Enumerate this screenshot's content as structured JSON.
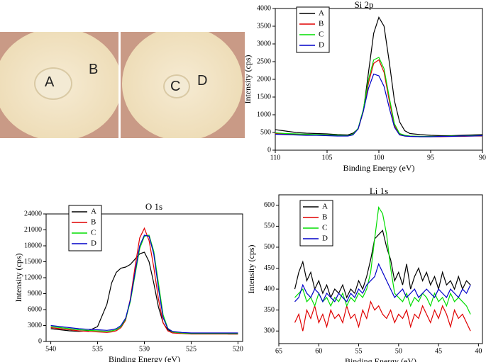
{
  "photo": {
    "labels": [
      "A",
      "B",
      "C",
      "D"
    ]
  },
  "chart_data": [
    {
      "type": "line",
      "title": "Si 2p",
      "x_label": "Binding Energy (eV)",
      "y_label": "Intensity (cps)",
      "x": [
        110,
        109,
        108,
        107,
        106,
        105,
        104,
        103,
        102.5,
        102,
        101.5,
        101,
        100.5,
        100,
        99.5,
        99,
        98.5,
        98,
        97.5,
        97,
        96,
        95,
        94,
        93,
        92,
        91,
        90
      ],
      "series": [
        {
          "name": "A",
          "color": "#000000",
          "values": [
            580,
            540,
            500,
            480,
            470,
            460,
            440,
            430,
            480,
            600,
            1100,
            2200,
            3300,
            3750,
            3500,
            2500,
            1400,
            800,
            550,
            470,
            440,
            420,
            410,
            410,
            420,
            430,
            440
          ]
        },
        {
          "name": "B",
          "color": "#e00000",
          "values": [
            470,
            460,
            450,
            440,
            430,
            420,
            410,
            410,
            450,
            600,
            1100,
            1900,
            2450,
            2550,
            2200,
            1400,
            700,
            450,
            400,
            390,
            380,
            380,
            380,
            390,
            390,
            400,
            400
          ]
        },
        {
          "name": "C",
          "color": "#00dd00",
          "values": [
            490,
            470,
            460,
            450,
            440,
            430,
            420,
            410,
            450,
            620,
            1150,
            2000,
            2550,
            2620,
            2300,
            1500,
            750,
            470,
            420,
            400,
            390,
            390,
            390,
            400,
            400,
            410,
            410
          ]
        },
        {
          "name": "D",
          "color": "#0000c8",
          "values": [
            450,
            440,
            430,
            420,
            420,
            410,
            400,
            400,
            430,
            600,
            1100,
            1750,
            2150,
            2100,
            1800,
            1200,
            650,
            430,
            400,
            390,
            380,
            380,
            390,
            390,
            400,
            400,
            410
          ]
        }
      ],
      "xlim": [
        110,
        90
      ],
      "xticks": [
        110,
        105,
        100,
        95,
        90
      ],
      "ylim": [
        0,
        4000
      ],
      "yticks": [
        0,
        500,
        1000,
        1500,
        2000,
        2500,
        3000,
        3500,
        4000
      ],
      "legend": "upper left"
    },
    {
      "type": "line",
      "title": "O 1s",
      "x_label": "Binding Energy (eV)",
      "y_label": "Intensity (cps)",
      "x": [
        540,
        539,
        538,
        537,
        536,
        535,
        534,
        533.5,
        533,
        532.5,
        532,
        531.5,
        531,
        530.5,
        530,
        529.5,
        529,
        528.5,
        528,
        527.5,
        527,
        526,
        525,
        524,
        523,
        522,
        521,
        520
      ],
      "series": [
        {
          "name": "A",
          "color": "#000000",
          "values": [
            2400,
            2200,
            2000,
            1900,
            2000,
            2800,
            7000,
            11000,
            13000,
            13800,
            14000,
            14500,
            15500,
            16500,
            16800,
            15000,
            11000,
            6500,
            3500,
            2200,
            1800,
            1600,
            1500,
            1500,
            1500,
            1500,
            1400,
            1400
          ]
        },
        {
          "name": "B",
          "color": "#e00000",
          "values": [
            2600,
            2400,
            2200,
            2000,
            1900,
            1800,
            1700,
            1800,
            2000,
            2600,
            4000,
            8000,
            14000,
            19500,
            21300,
            19000,
            14000,
            8000,
            3500,
            2000,
            1600,
            1500,
            1400,
            1400,
            1400,
            1400,
            1400,
            1400
          ]
        },
        {
          "name": "C",
          "color": "#00dd00",
          "values": [
            2800,
            2600,
            2400,
            2200,
            2100,
            2000,
            1900,
            2000,
            2200,
            2800,
            4200,
            7500,
            12500,
            17500,
            19800,
            20000,
            17000,
            11000,
            5000,
            2500,
            1800,
            1600,
            1500,
            1500,
            1500,
            1500,
            1500,
            1500
          ]
        },
        {
          "name": "D",
          "color": "#0000c8",
          "values": [
            3000,
            2800,
            2600,
            2400,
            2300,
            2200,
            2100,
            2200,
            2400,
            3000,
            4400,
            7800,
            13000,
            18000,
            20000,
            19800,
            16500,
            10000,
            4500,
            2400,
            1900,
            1700,
            1600,
            1600,
            1600,
            1600,
            1600,
            1600
          ]
        }
      ],
      "xlim": [
        540.5,
        519.5
      ],
      "xticks": [
        540,
        535,
        530,
        525,
        520
      ],
      "ylim": [
        0,
        24000
      ],
      "yticks": [
        0,
        3000,
        6000,
        9000,
        12000,
        15000,
        18000,
        21000,
        24000
      ],
      "legend": "upper left"
    },
    {
      "type": "line",
      "title": "Li 1s",
      "x_label": "Binding Energy (eV)",
      "y_label": "Intensity (cps)",
      "x": [
        63,
        62.5,
        62,
        61.5,
        61,
        60.5,
        60,
        59.5,
        59,
        58.5,
        58,
        57.5,
        57,
        56.5,
        56,
        55.5,
        55,
        54.5,
        54,
        53.5,
        53,
        52.5,
        52,
        51.5,
        51,
        50.5,
        50,
        49.5,
        49,
        48.5,
        48,
        47.5,
        47,
        46.5,
        46,
        45.5,
        45,
        44.5,
        44,
        43.5,
        43,
        42.5,
        42,
        41.5,
        41
      ],
      "series": [
        {
          "name": "A",
          "color": "#000000",
          "values": [
            400,
            440,
            465,
            420,
            440,
            400,
            420,
            390,
            410,
            380,
            400,
            390,
            410,
            380,
            400,
            390,
            420,
            400,
            430,
            470,
            520,
            530,
            540,
            500,
            470,
            420,
            440,
            410,
            460,
            400,
            430,
            450,
            420,
            440,
            410,
            430,
            400,
            440,
            410,
            420,
            400,
            430,
            400,
            420,
            410
          ]
        },
        {
          "name": "B",
          "color": "#e00000",
          "values": [
            320,
            340,
            300,
            350,
            330,
            360,
            320,
            340,
            310,
            350,
            330,
            340,
            320,
            360,
            330,
            340,
            310,
            350,
            330,
            370,
            350,
            360,
            340,
            330,
            350,
            320,
            340,
            330,
            350,
            310,
            340,
            330,
            360,
            340,
            320,
            350,
            330,
            360,
            340,
            310,
            350,
            330,
            340,
            320,
            300
          ]
        },
        {
          "name": "C",
          "color": "#00dd00",
          "values": [
            380,
            390,
            400,
            370,
            380,
            360,
            390,
            370,
            380,
            360,
            380,
            370,
            390,
            360,
            380,
            370,
            390,
            380,
            400,
            440,
            520,
            595,
            580,
            530,
            450,
            390,
            380,
            370,
            390,
            360,
            380,
            370,
            390,
            380,
            360,
            390,
            370,
            380,
            360,
            390,
            370,
            380,
            370,
            360,
            340
          ]
        },
        {
          "name": "D",
          "color": "#0000c8",
          "values": [
            370,
            380,
            410,
            390,
            380,
            400,
            390,
            370,
            390,
            380,
            370,
            390,
            380,
            370,
            390,
            380,
            400,
            390,
            410,
            420,
            430,
            460,
            440,
            420,
            400,
            380,
            390,
            400,
            380,
            390,
            400,
            380,
            390,
            400,
            390,
            380,
            400,
            390,
            380,
            400,
            390,
            380,
            400,
            390,
            410
          ]
        }
      ],
      "xlim": [
        65,
        39.5
      ],
      "xticks": [
        65,
        60,
        55,
        50,
        45,
        40
      ],
      "ylim": [
        270,
        625
      ],
      "yticks": [
        300,
        350,
        400,
        450,
        500,
        550,
        600
      ],
      "legend": "upper left"
    }
  ]
}
